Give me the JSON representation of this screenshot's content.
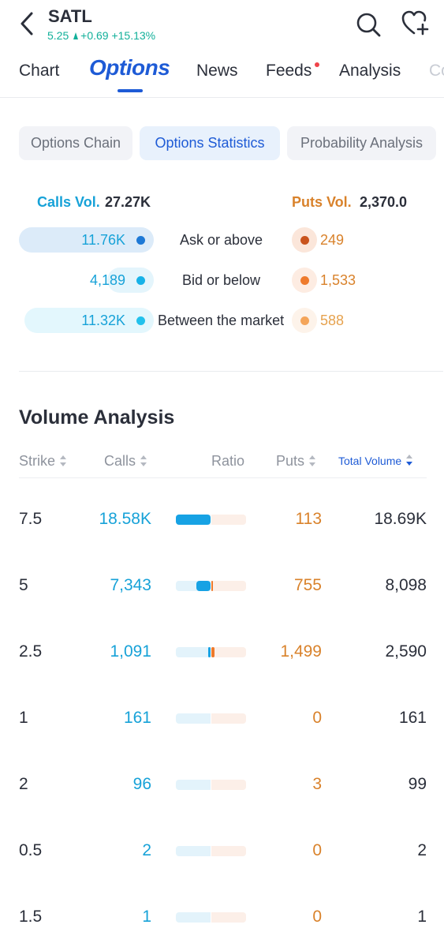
{
  "header": {
    "ticker": "SATL",
    "price": "5.25",
    "change": "+0.69",
    "change_pct": "+15.13%",
    "up_color": "#12b09a"
  },
  "tabs": [
    {
      "label": "Chart"
    },
    {
      "label": "Options",
      "active": true
    },
    {
      "label": "News"
    },
    {
      "label": "Feeds",
      "has_dot": true
    },
    {
      "label": "Analysis"
    },
    {
      "label": "Co"
    }
  ],
  "chips": [
    {
      "label": "Options Chain"
    },
    {
      "label": "Options Statistics",
      "active": true
    },
    {
      "label": "Probability Analysis"
    }
  ],
  "summary": {
    "calls_label": "Calls Vol.",
    "calls_value": "27.27K",
    "puts_label": "Puts Vol.",
    "puts_value": "2,370.0",
    "calls_color": "#17a2d8",
    "puts_color": "#d9822b",
    "rows": [
      {
        "label": "Ask or above",
        "calls": "11.76K",
        "puts": "249",
        "calls_share": 0.43,
        "puts_share": 0.11
      },
      {
        "label": "Bid or below",
        "calls": "4,189",
        "puts": "1,533",
        "calls_share": 0.15,
        "puts_share": 0.65
      },
      {
        "label": "Between the market",
        "calls": "11.32K",
        "puts": "588",
        "calls_share": 0.42,
        "puts_share": 0.25
      }
    ]
  },
  "volume_analysis": {
    "title": "Volume Analysis",
    "columns": {
      "strike": "Strike",
      "calls": "Calls",
      "ratio": "Ratio",
      "puts": "Puts",
      "total": "Total Volume"
    },
    "rows": [
      {
        "strike": "7.5",
        "calls": "18.58K",
        "puts": "113",
        "total": "18.69K",
        "calls_fill": 1.0,
        "puts_fill": 0.0
      },
      {
        "strike": "5",
        "calls": "7,343",
        "puts": "755",
        "total": "8,098",
        "calls_fill": 0.4,
        "puts_fill": 0.04
      },
      {
        "strike": "2.5",
        "calls": "1,091",
        "puts": "1,499",
        "total": "2,590",
        "calls_fill": 0.06,
        "puts_fill": 0.08
      },
      {
        "strike": "1",
        "calls": "161",
        "puts": "0",
        "total": "161",
        "calls_fill": 0.01,
        "puts_fill": 0.0
      },
      {
        "strike": "2",
        "calls": "96",
        "puts": "3",
        "total": "99",
        "calls_fill": 0.0,
        "puts_fill": 0.0
      },
      {
        "strike": "0.5",
        "calls": "2",
        "puts": "0",
        "total": "2",
        "calls_fill": 0.0,
        "puts_fill": 0.0
      },
      {
        "strike": "1.5",
        "calls": "1",
        "puts": "0",
        "total": "1",
        "calls_fill": 0.0,
        "puts_fill": 0.0
      }
    ]
  }
}
